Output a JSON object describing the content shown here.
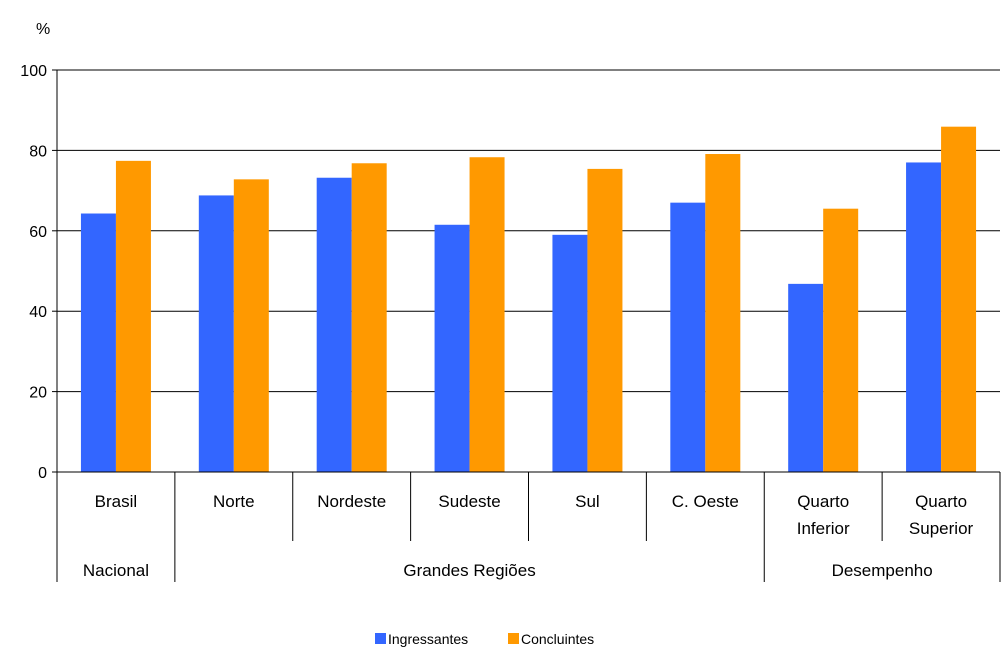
{
  "chart_data": {
    "type": "bar",
    "ylabel": "%",
    "ylim": [
      0,
      100
    ],
    "yticks": [
      0,
      20,
      40,
      60,
      80,
      100
    ],
    "grid": true,
    "legend_position": "bottom",
    "categories": [
      {
        "label_lines": [
          "Brasil"
        ]
      },
      {
        "label_lines": [
          "Norte"
        ]
      },
      {
        "label_lines": [
          "Nordeste"
        ]
      },
      {
        "label_lines": [
          "Sudeste"
        ]
      },
      {
        "label_lines": [
          "Sul"
        ]
      },
      {
        "label_lines": [
          "C. Oeste"
        ]
      },
      {
        "label_lines": [
          "Quarto",
          "Inferior"
        ]
      },
      {
        "label_lines": [
          "Quarto",
          "Superior"
        ]
      }
    ],
    "groups": [
      {
        "label": "Nacional",
        "start": 0,
        "count": 1
      },
      {
        "label": "Grandes Regiões",
        "start": 1,
        "count": 5
      },
      {
        "label": "Desempenho",
        "start": 6,
        "count": 2
      }
    ],
    "series": [
      {
        "name": "Ingressantes",
        "color": "#3366FF",
        "values": [
          64.3,
          68.8,
          73.2,
          61.5,
          59.0,
          67.0,
          46.8,
          77.0
        ]
      },
      {
        "name": "Concluintes",
        "color": "#FF9900",
        "values": [
          77.4,
          72.8,
          76.8,
          78.3,
          75.4,
          79.1,
          65.5,
          85.9
        ]
      }
    ]
  }
}
